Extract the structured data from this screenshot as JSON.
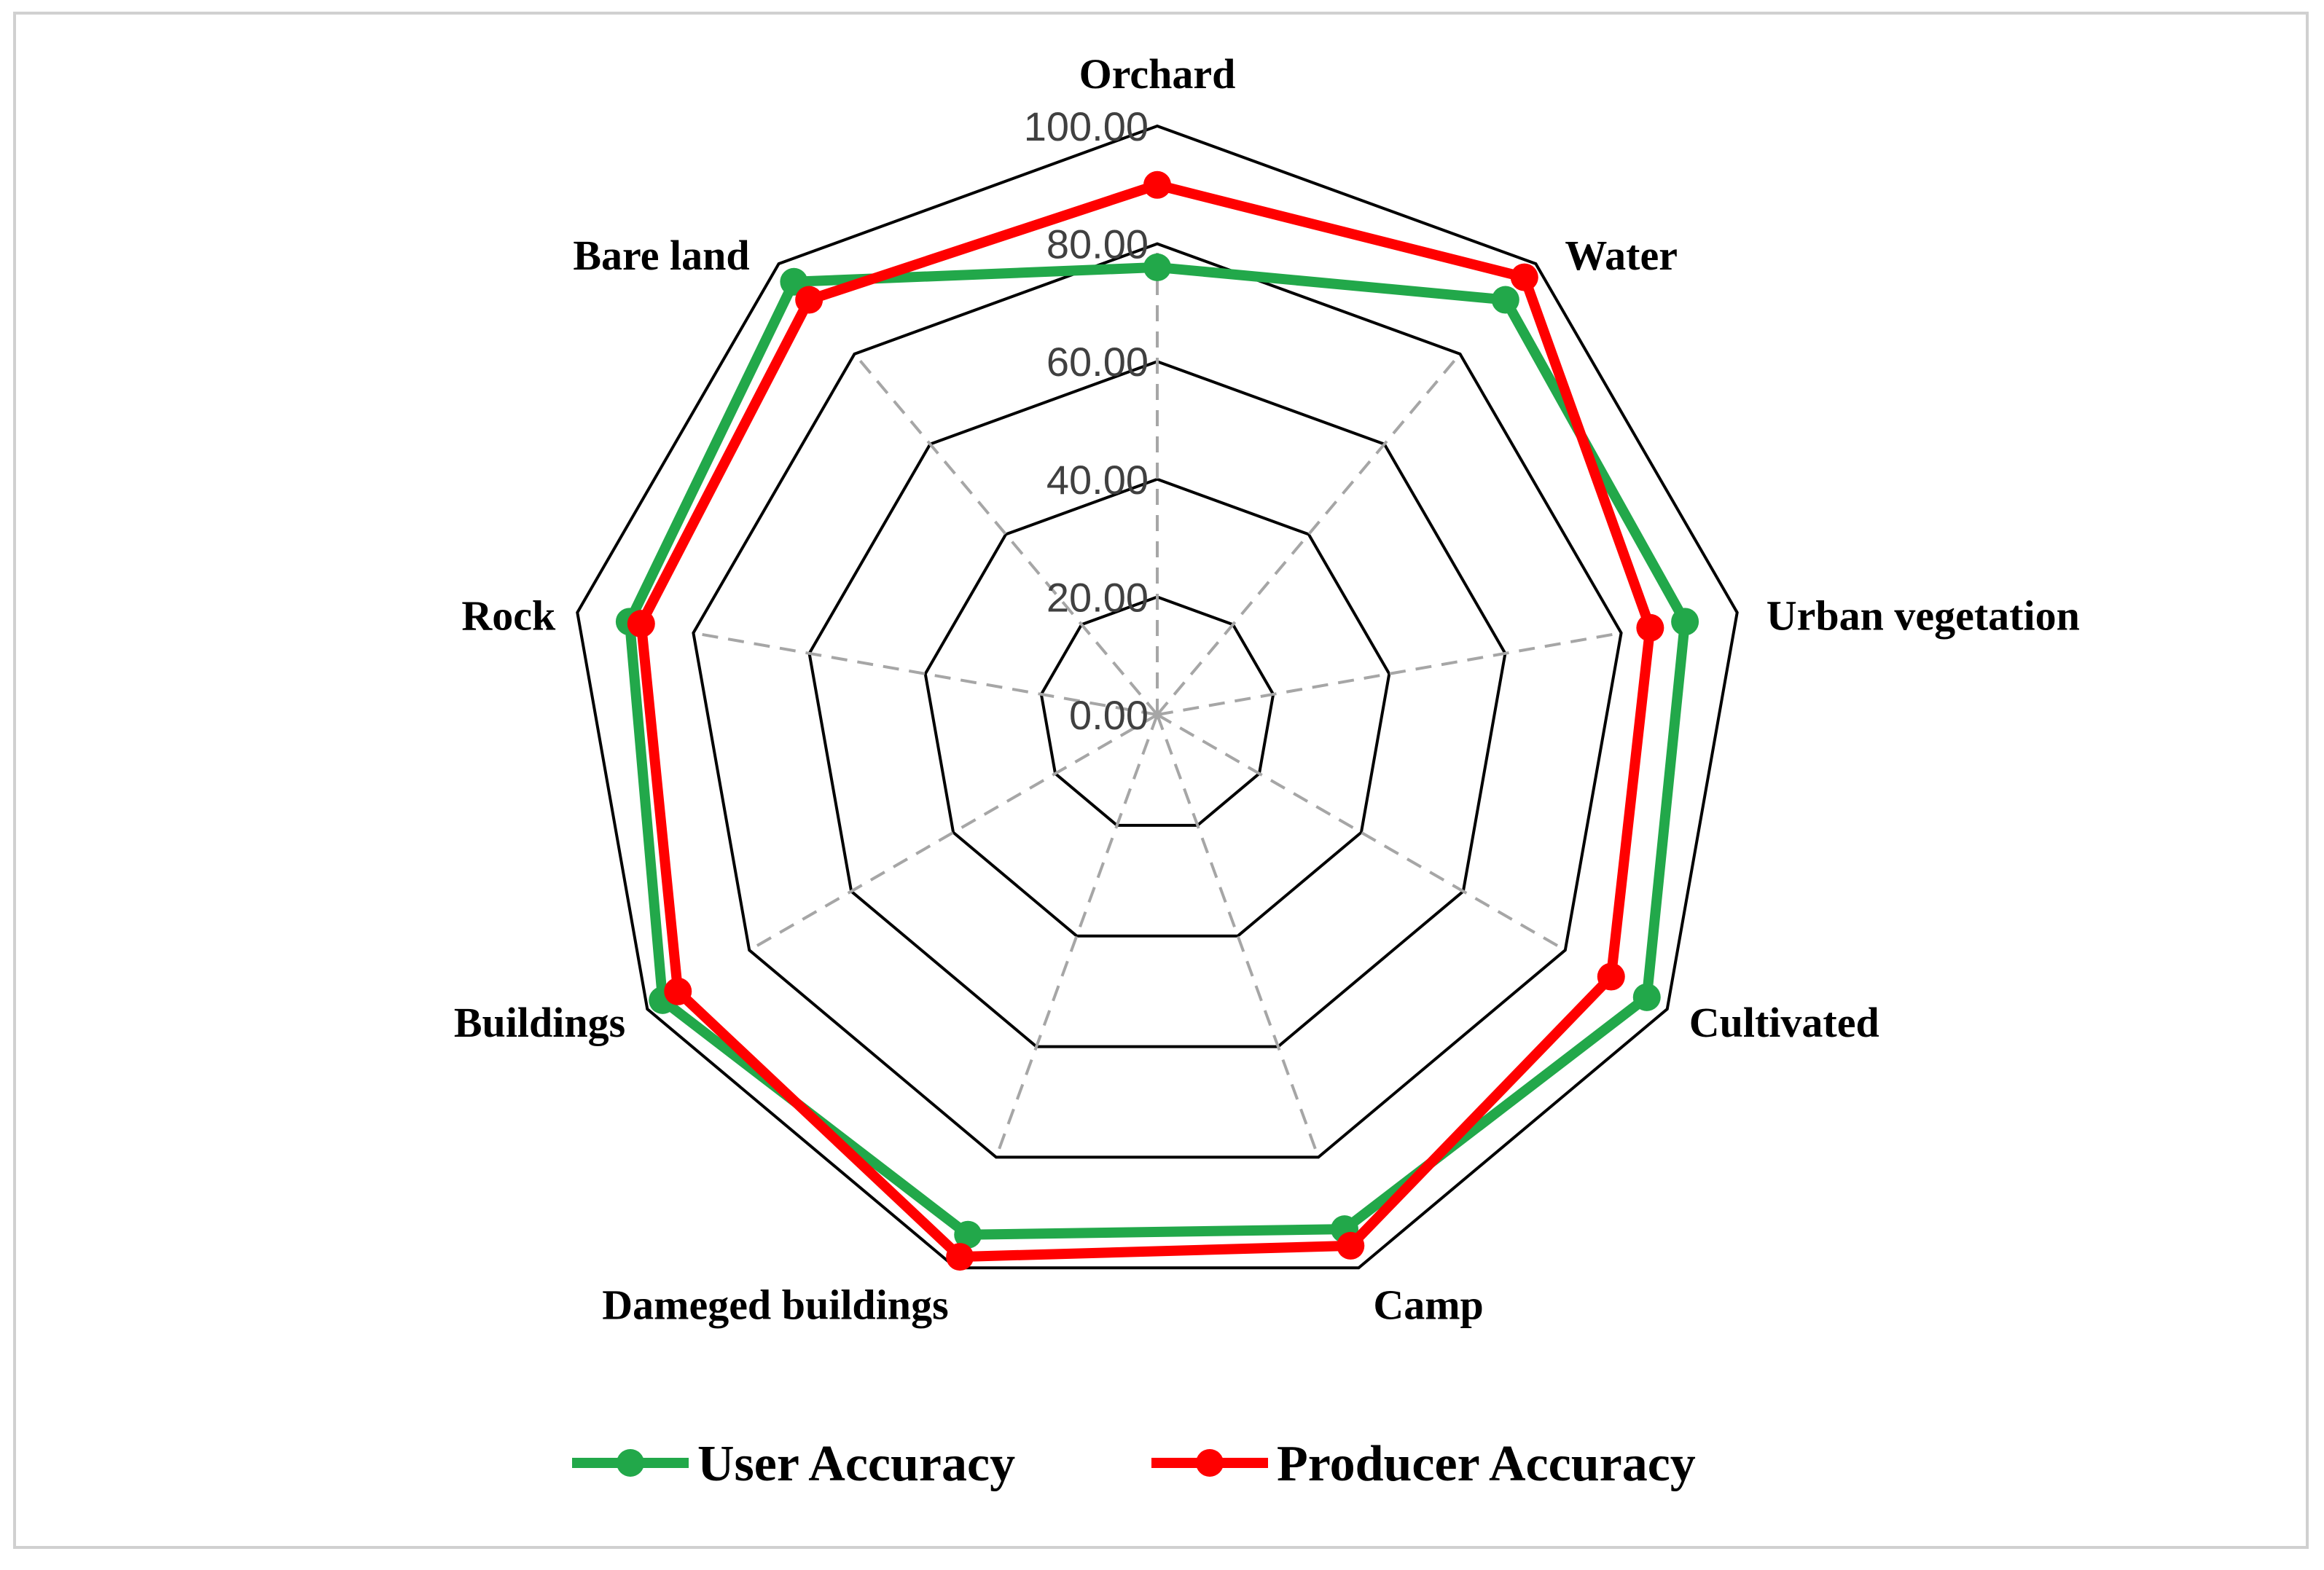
{
  "chart_data": {
    "type": "radar",
    "title": "",
    "categories": [
      "Orchard",
      "Water",
      "Urban vegetation",
      "Cultivated",
      "Camp",
      "Dameged buildings",
      "Buildings",
      "Rock",
      "Bare land"
    ],
    "rlim": [
      0,
      100
    ],
    "tick_values": [
      0,
      20,
      40,
      60,
      80,
      100
    ],
    "tick_labels": [
      "0.00",
      "20.00",
      "40.00",
      "60.00",
      "80.00",
      "100.00"
    ],
    "grid": true,
    "legend_position": "bottom",
    "series": [
      {
        "name": "User Accuracy",
        "color": "#22a84a",
        "values": [
          76,
          92,
          91,
          96,
          93,
          94,
          97,
          91,
          96
        ]
      },
      {
        "name": "Producer Accuracy",
        "color": "#ff0000",
        "values": [
          90,
          97,
          85,
          89,
          96,
          98,
          94,
          89,
          92
        ]
      }
    ]
  },
  "gridline_color": "#000000",
  "spoke_color": "#a6a6a6"
}
